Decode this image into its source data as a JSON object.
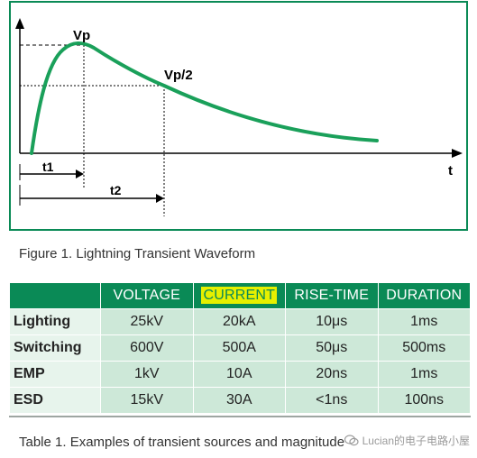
{
  "colors": {
    "frame": "#0a8a56",
    "curve": "#1aa05a",
    "header_bg": "#0a8a56",
    "cell_bg": "#cde8d8",
    "rowhead_bg": "#e7f4ec",
    "highlight": "#e6f000"
  },
  "figure": {
    "peak_label": "Vp",
    "half_label": "Vp/2",
    "axis_label": "t",
    "t1_label": "t1",
    "t2_label": "t2",
    "caption": "Figure 1. Lightning Transient Waveform"
  },
  "table": {
    "headers": [
      "",
      "VOLTAGE",
      "CURRENT",
      "RISE-TIME",
      "DURATION"
    ],
    "highlighted_header": "CURRENT",
    "rows": [
      {
        "source": "Lighting",
        "voltage": "25kV",
        "current": "20kA",
        "rise_time": "10μs",
        "duration": "1ms"
      },
      {
        "source": "Switching",
        "voltage": "600V",
        "current": "500A",
        "rise_time": "50μs",
        "duration": "500ms"
      },
      {
        "source": "EMP",
        "voltage": "1kV",
        "current": "10A",
        "rise_time": "20ns",
        "duration": "1ms"
      },
      {
        "source": "ESD",
        "voltage": "15kV",
        "current": "30A",
        "rise_time": "<1ns",
        "duration": "100ns"
      }
    ],
    "caption": "Table 1. Examples of transient sources and magnitude"
  },
  "watermark": {
    "text": "Lucian的电子电路小屋",
    "icon": "wechat-icon"
  }
}
